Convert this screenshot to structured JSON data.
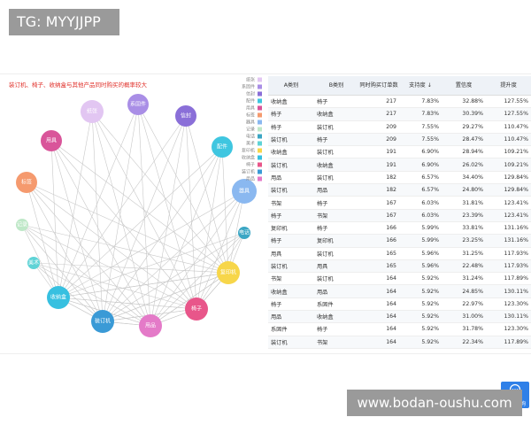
{
  "watermark_top": "TG: MYYJJPP",
  "watermark_bottom": "www.bodan-oushu.com",
  "chat_button": "在线咨询",
  "graph": {
    "title": "装订机、椅子、收纳盒与其他产品同时购买的概率较大",
    "nodes": [
      {
        "label": "纸张",
        "color": "#e2c6f2"
      },
      {
        "label": "系固件",
        "color": "#a98ee6"
      },
      {
        "label": "信封",
        "color": "#8a6fd8"
      },
      {
        "label": "配件",
        "color": "#3fc6e0"
      },
      {
        "label": "用具",
        "color": "#d9559a"
      },
      {
        "label": "标签",
        "color": "#f59a6e"
      },
      {
        "label": "器具",
        "color": "#8ab8f0"
      },
      {
        "label": "记录",
        "color": "#bfe8c8"
      },
      {
        "label": "电话",
        "color": "#3ba6c4"
      },
      {
        "label": "美术",
        "color": "#5fd3d6"
      },
      {
        "label": "复印机",
        "color": "#f7d64a"
      },
      {
        "label": "收纳盒",
        "color": "#37c0e0"
      },
      {
        "label": "椅子",
        "color": "#e8568a"
      },
      {
        "label": "装订机",
        "color": "#3a9ad6"
      },
      {
        "label": "用品",
        "color": "#e47ac8"
      }
    ]
  },
  "table": {
    "headers": [
      "A类别",
      "B类别",
      "同时购买订单数",
      "支持度 ↓",
      "置信度",
      "提升度"
    ],
    "rows": [
      [
        "收纳盒",
        "椅子",
        "217",
        "7.83%",
        "32.88%",
        "127.55%"
      ],
      [
        "椅子",
        "收纳盒",
        "217",
        "7.83%",
        "30.39%",
        "127.55%"
      ],
      [
        "椅子",
        "装订机",
        "209",
        "7.55%",
        "29.27%",
        "110.47%"
      ],
      [
        "装订机",
        "椅子",
        "209",
        "7.55%",
        "28.47%",
        "110.47%"
      ],
      [
        "收纳盒",
        "装订机",
        "191",
        "6.90%",
        "28.94%",
        "109.21%"
      ],
      [
        "装订机",
        "收纳盒",
        "191",
        "6.90%",
        "26.02%",
        "109.21%"
      ],
      [
        "用品",
        "装订机",
        "182",
        "6.57%",
        "34.40%",
        "129.84%"
      ],
      [
        "装订机",
        "用品",
        "182",
        "6.57%",
        "24.80%",
        "129.84%"
      ],
      [
        "书架",
        "椅子",
        "167",
        "6.03%",
        "31.81%",
        "123.41%"
      ],
      [
        "椅子",
        "书架",
        "167",
        "6.03%",
        "23.39%",
        "123.41%"
      ],
      [
        "复印机",
        "椅子",
        "166",
        "5.99%",
        "33.81%",
        "131.16%"
      ],
      [
        "椅子",
        "复印机",
        "166",
        "5.99%",
        "23.25%",
        "131.16%"
      ],
      [
        "用具",
        "装订机",
        "165",
        "5.96%",
        "31.25%",
        "117.93%"
      ],
      [
        "装订机",
        "用具",
        "165",
        "5.96%",
        "22.48%",
        "117.93%"
      ],
      [
        "书架",
        "装订机",
        "164",
        "5.92%",
        "31.24%",
        "117.89%"
      ],
      [
        "收纳盒",
        "用品",
        "164",
        "5.92%",
        "24.85%",
        "130.11%"
      ],
      [
        "椅子",
        "系固件",
        "164",
        "5.92%",
        "22.97%",
        "123.30%"
      ],
      [
        "用品",
        "收纳盒",
        "164",
        "5.92%",
        "31.00%",
        "130.11%"
      ],
      [
        "系固件",
        "椅子",
        "164",
        "5.92%",
        "31.78%",
        "123.30%"
      ],
      [
        "装订机",
        "书架",
        "164",
        "5.92%",
        "22.34%",
        "117.89%"
      ]
    ]
  }
}
